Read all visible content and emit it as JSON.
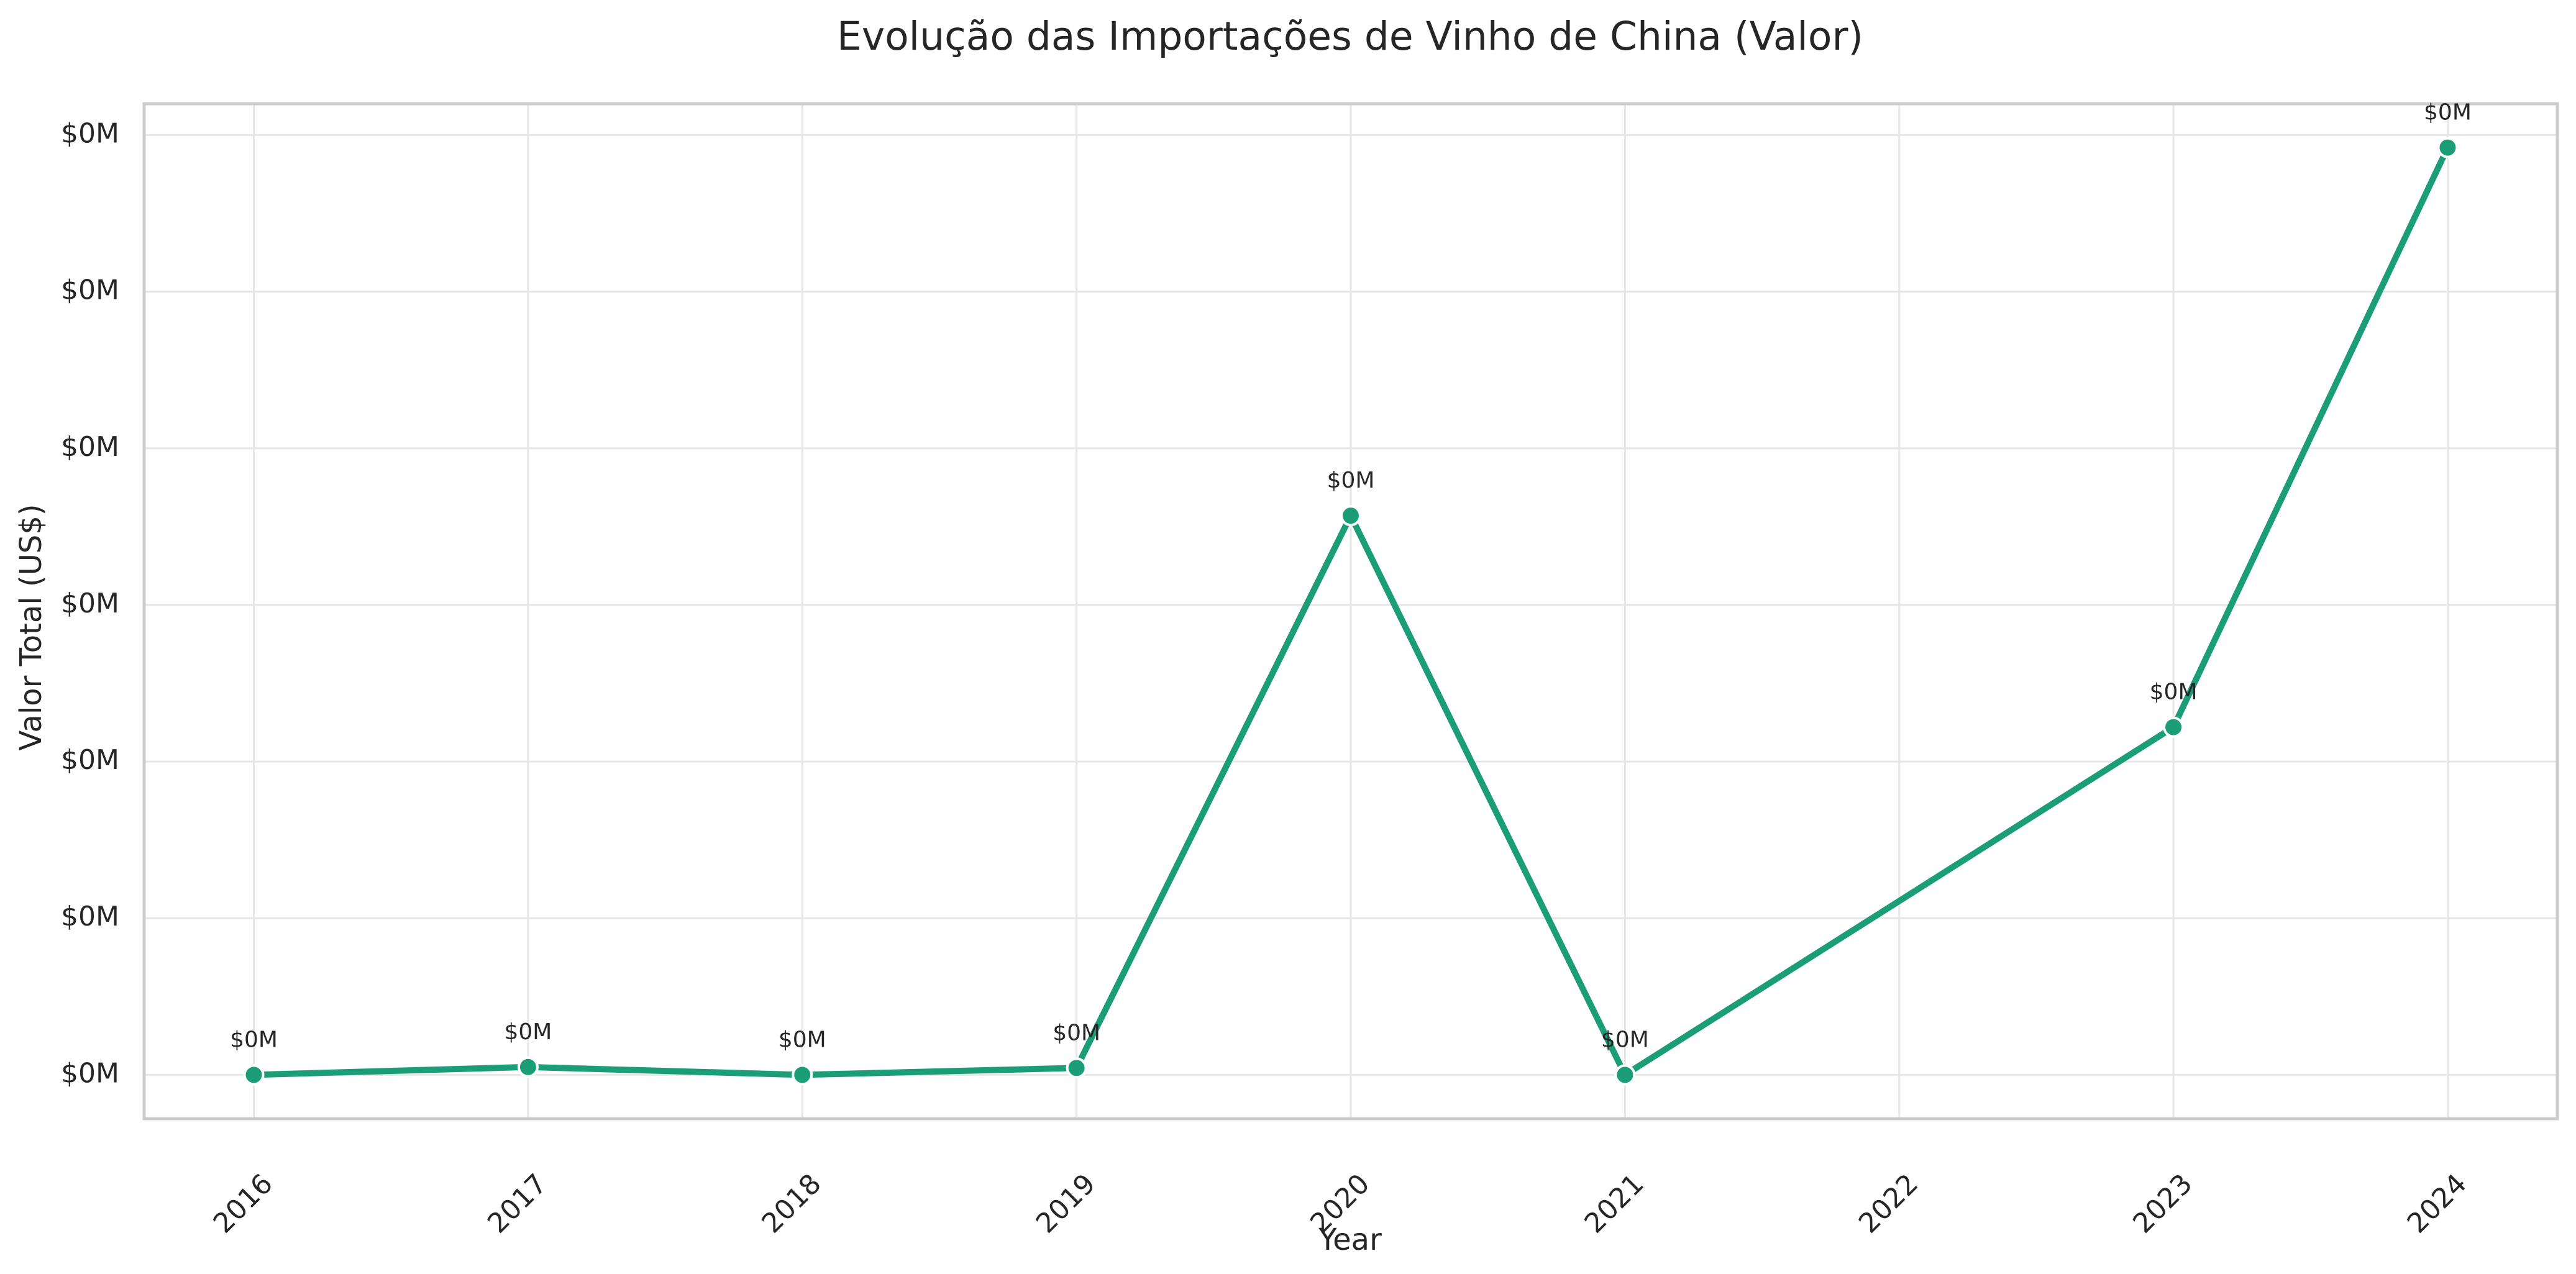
{
  "chart_data": {
    "type": "line",
    "title": "Evolução das Importações de Vinho de China (Valor)",
    "xlabel": "Year",
    "ylabel": "Valor Total (US$)",
    "x": [
      2016,
      2017,
      2018,
      2019,
      2020,
      2021,
      2023,
      2024
    ],
    "x_ticks": [
      "2016",
      "2017",
      "2018",
      "2019",
      "2020",
      "2021",
      "2022",
      "2023",
      "2024"
    ],
    "y_ticks": [
      "$0M",
      "$0M",
      "$0M",
      "$0M",
      "$0M",
      "$0M",
      "$0M"
    ],
    "y_tick_values": [
      0,
      500,
      1000,
      1500,
      2000,
      2500,
      3000
    ],
    "series": [
      {
        "values": [
          0,
          25,
          0,
          22,
          1785,
          0,
          1110,
          2960
        ],
        "data_labels": [
          "$0M",
          "$0M",
          "$0M",
          "$0M",
          "$0M",
          "$0M",
          "$0M",
          "$0M"
        ],
        "color": "#1b9e77"
      }
    ],
    "xlim": [
      2015.6,
      2024.4
    ],
    "ylim": [
      -140,
      3100
    ],
    "grid": true,
    "legend": "none"
  }
}
